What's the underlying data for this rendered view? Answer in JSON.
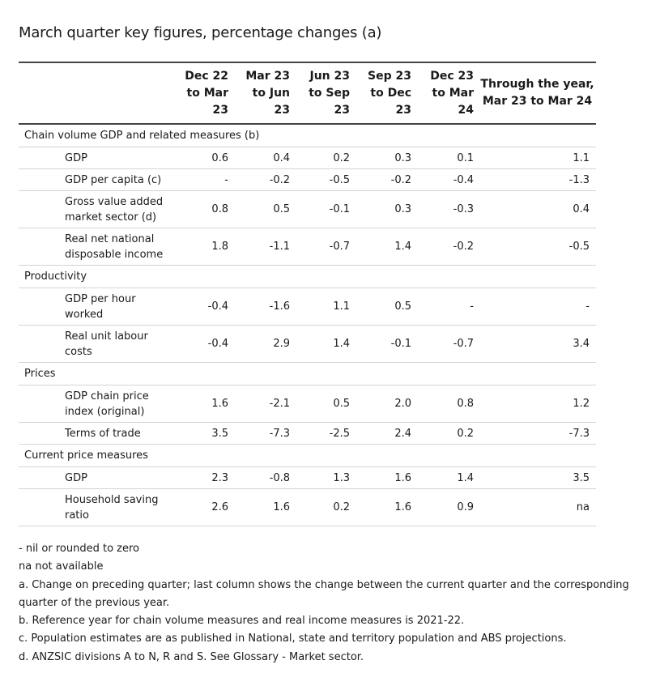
{
  "title": "March quarter key figures, percentage changes (a)",
  "columns": [
    {
      "line1": "Dec 22",
      "line2": "to Mar",
      "line3": "23"
    },
    {
      "line1": "Mar 23",
      "line2": "to Jun",
      "line3": "23"
    },
    {
      "line1": "Jun 23",
      "line2": "to Sep",
      "line3": "23"
    },
    {
      "line1": "Sep 23",
      "line2": "to Dec",
      "line3": "23"
    },
    {
      "line1": "Dec 23",
      "line2": "to Mar",
      "line3": "24"
    },
    {
      "line1": "Through the year,",
      "line2": "Mar 23 to Mar 24"
    }
  ],
  "sections": [
    {
      "title": "Chain volume GDP and related measures (b)",
      "rows": [
        {
          "line1": "GDP",
          "values": [
            "0.6",
            "0.4",
            "0.2",
            "0.3",
            "0.1",
            "1.1"
          ]
        },
        {
          "line1": "GDP per capita (c)",
          "values": [
            "-",
            "-0.2",
            "-0.5",
            "-0.2",
            "-0.4",
            "-1.3"
          ]
        },
        {
          "line1": "Gross value added",
          "line2": "market sector (d)",
          "values": [
            "0.8",
            "0.5",
            "-0.1",
            "0.3",
            "-0.3",
            "0.4"
          ]
        },
        {
          "line1": "Real net national",
          "line2": "disposable income",
          "values": [
            "1.8",
            "-1.1",
            "-0.7",
            "1.4",
            "-0.2",
            "-0.5"
          ]
        }
      ]
    },
    {
      "title": "Productivity",
      "rows": [
        {
          "line1": "GDP per hour",
          "line2": "worked",
          "values": [
            "-0.4",
            "-1.6",
            "1.1",
            "0.5",
            "-",
            "-"
          ]
        },
        {
          "line1": "Real unit labour",
          "line2": "costs",
          "values": [
            "-0.4",
            "2.9",
            "1.4",
            "-0.1",
            "-0.7",
            "3.4"
          ]
        }
      ]
    },
    {
      "title": "Prices",
      "rows": [
        {
          "line1": "GDP chain price",
          "line2": "index (original)",
          "values": [
            "1.6",
            "-2.1",
            "0.5",
            "2.0",
            "0.8",
            "1.2"
          ]
        },
        {
          "line1": "Terms of trade",
          "values": [
            "3.5",
            "-7.3",
            "-2.5",
            "2.4",
            "0.2",
            "-7.3"
          ]
        }
      ]
    },
    {
      "title": "Current price measures",
      "rows": [
        {
          "line1": "GDP",
          "values": [
            "2.3",
            "-0.8",
            "1.3",
            "1.6",
            "1.4",
            "3.5"
          ]
        },
        {
          "line1": "Household saving",
          "line2": "ratio",
          "values": [
            "2.6",
            "1.6",
            "0.2",
            "1.6",
            "0.9",
            "na"
          ]
        }
      ]
    }
  ],
  "notes": [
    "- nil or rounded to zero",
    "na not available",
    "a. Change on preceding quarter; last column shows the change between the current quarter and the corresponding quarter of the previous year.",
    "b. Reference year for chain volume measures and real income measures is 2021-22.",
    "c. Population estimates are as published in National, state and territory population and ABS projections.",
    "d. ANZSIC divisions A to N, R and S. See Glossary - Market sector."
  ]
}
